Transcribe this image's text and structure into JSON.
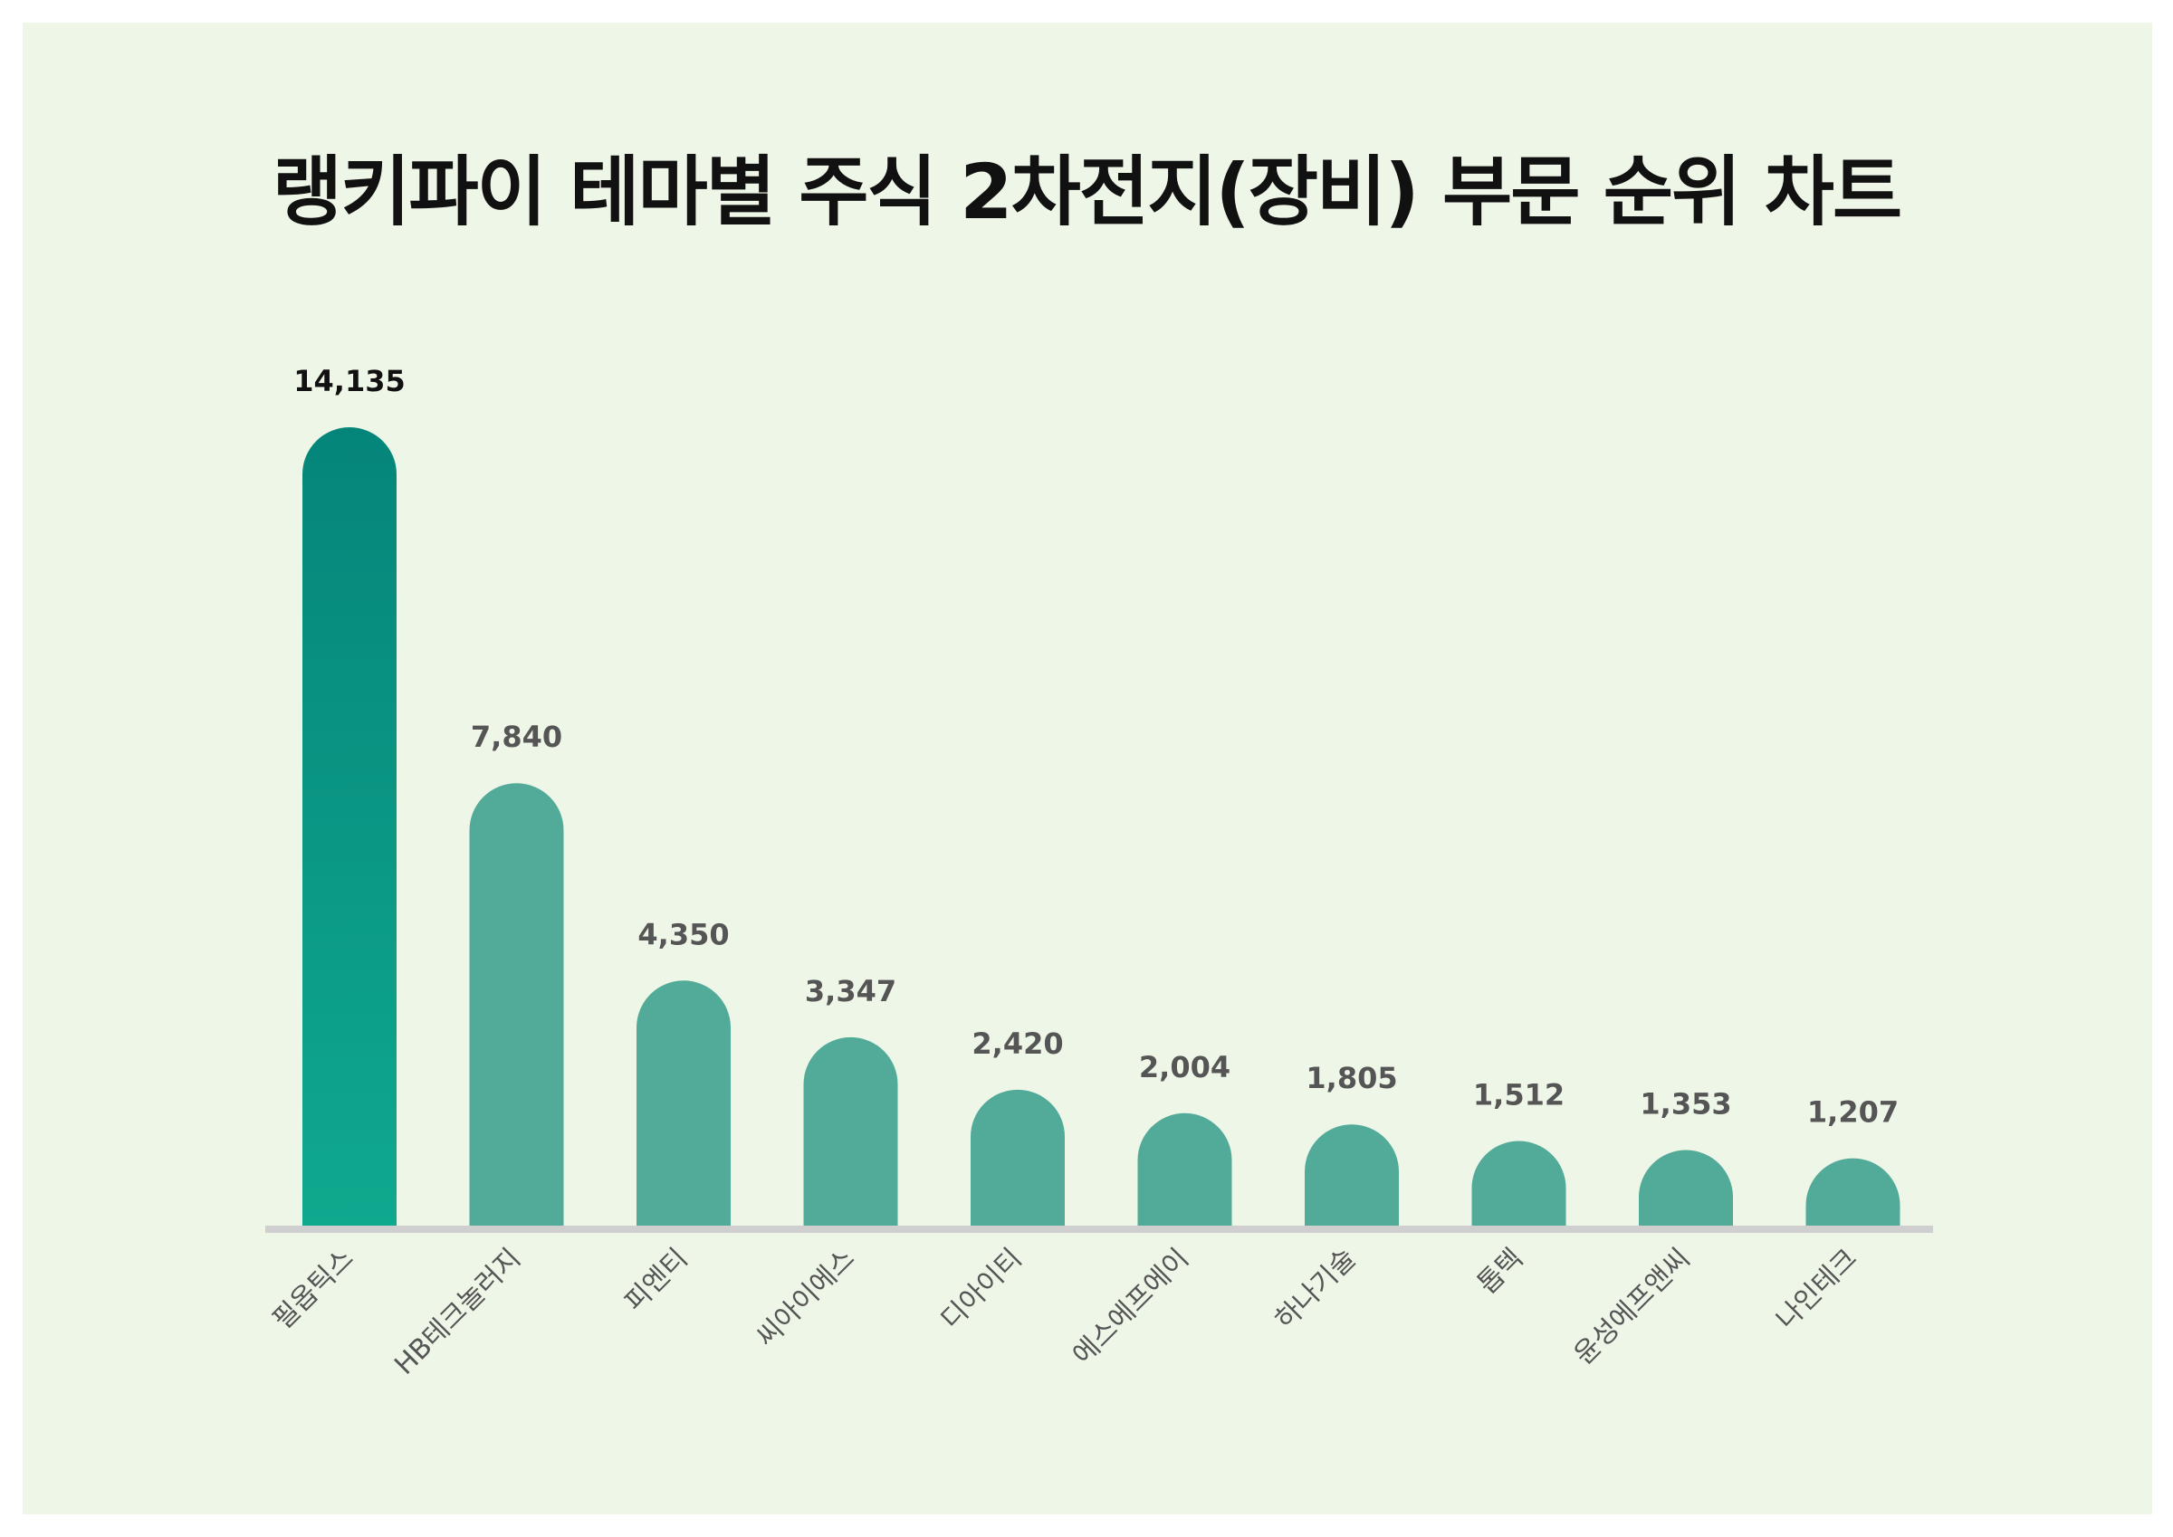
{
  "chart_data": {
    "type": "bar",
    "title": "랭키파이 테마별 주식 2차전지(장비) 부문 순위 차트",
    "categories": [
      "필옵틱스",
      "HB테크놀러지",
      "피엔티",
      "씨아이에스",
      "디아이티",
      "에스에프에이",
      "하나기술",
      "톱텍",
      "윤성에프앤씨",
      "나인테크"
    ],
    "values": [
      14135,
      7840,
      4350,
      3347,
      2420,
      2004,
      1805,
      1512,
      1353,
      1207
    ],
    "value_labels": [
      "14,135",
      "7,840",
      "4,350",
      "3,347",
      "2,420",
      "2,004",
      "1,805",
      "1,512",
      "1,353",
      "1,207"
    ],
    "xlabel": "",
    "ylabel": "",
    "ylim": [
      0,
      14135
    ],
    "grid": false,
    "legend": "none",
    "colors": {
      "top_bar_gradient_top": "#05857a",
      "top_bar_gradient_bottom": "#0fa98e",
      "bar": "#52aa98",
      "top_value_label": "#111111",
      "value_label": "#555555",
      "baseline": "#cfcfcf",
      "background": "#eef6e8"
    }
  }
}
